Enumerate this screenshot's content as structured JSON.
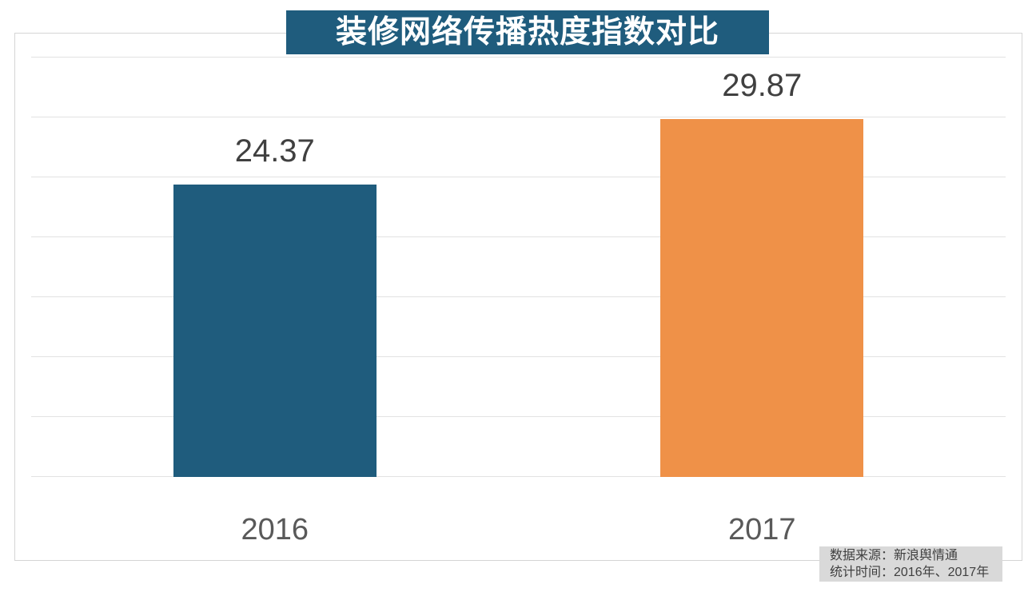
{
  "title": "装修网络传播热度指数对比",
  "footer": {
    "source_line": "数据来源：新浪舆情通",
    "period_line": "统计时间：2016年、2017年"
  },
  "colors": {
    "title_bg": "#1F5C7D",
    "title_text": "#FFFFFF",
    "bar_2016": "#1F5C7D",
    "bar_2017": "#EF9148",
    "value_label": "#404040",
    "axis_label": "#595959",
    "gridline": "#E2E2E2",
    "frame_border": "#D5D5D5",
    "footer_bg": "#D9D9D9",
    "footer_text": "#404040"
  },
  "chart_data": {
    "type": "bar",
    "title": "装修网络传播热度指数对比",
    "categories": [
      "2016",
      "2017"
    ],
    "values": [
      24.37,
      29.87
    ],
    "value_labels": [
      "24.37",
      "29.87"
    ],
    "bar_colors": [
      "#1F5C7D",
      "#EF9148"
    ],
    "xlabel": "",
    "ylabel": "",
    "ylim": [
      0,
      35
    ],
    "grid_step": 5,
    "grid": true,
    "legend": false,
    "legend_position": "none"
  }
}
